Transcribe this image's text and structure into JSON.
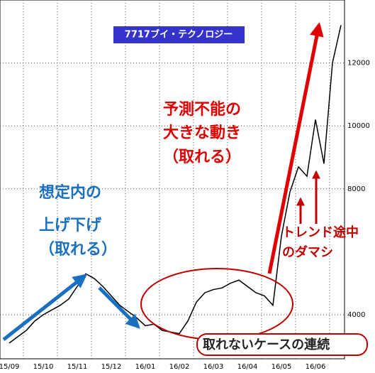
{
  "chart_data": {
    "type": "line",
    "title": "7717ブイ・テクノロジー",
    "categories": [
      "15/09",
      null,
      null,
      null,
      "15/10",
      null,
      null,
      null,
      "15/11",
      null,
      null,
      null,
      "15/12",
      null,
      null,
      null,
      "16/01",
      null,
      null,
      null,
      "16/02",
      null,
      null,
      null,
      "16/03",
      null,
      null,
      null,
      "16/04",
      null,
      null,
      null,
      "16/05",
      null,
      null,
      null,
      "16/06",
      null,
      null,
      null
    ],
    "series": [
      {
        "color": "#000000",
        "values": [
          3100,
          3300,
          3500,
          3800,
          4000,
          4150,
          4300,
          4500,
          4900,
          5300,
          5150,
          4900,
          4600,
          4300,
          4100,
          3900,
          3650,
          3700,
          3500,
          3450,
          3400,
          3800,
          4400,
          4700,
          4800,
          4850,
          5000,
          5100,
          4900,
          4700,
          4600,
          4300,
          6500,
          7900,
          8700,
          8400,
          10200,
          8800,
          12000,
          13200
        ]
      }
    ],
    "ylim": [
      2600,
      14000
    ],
    "yticks": [
      4000,
      8000,
      10000,
      12000
    ],
    "grid": true,
    "annotations": [
      "予測不能の",
      "大きな動き",
      "（取れる）",
      "想定内の",
      "上げ下げ",
      "（取れる）",
      "トレンド途中",
      "のダマシ",
      "取れないケースの連続"
    ]
  }
}
